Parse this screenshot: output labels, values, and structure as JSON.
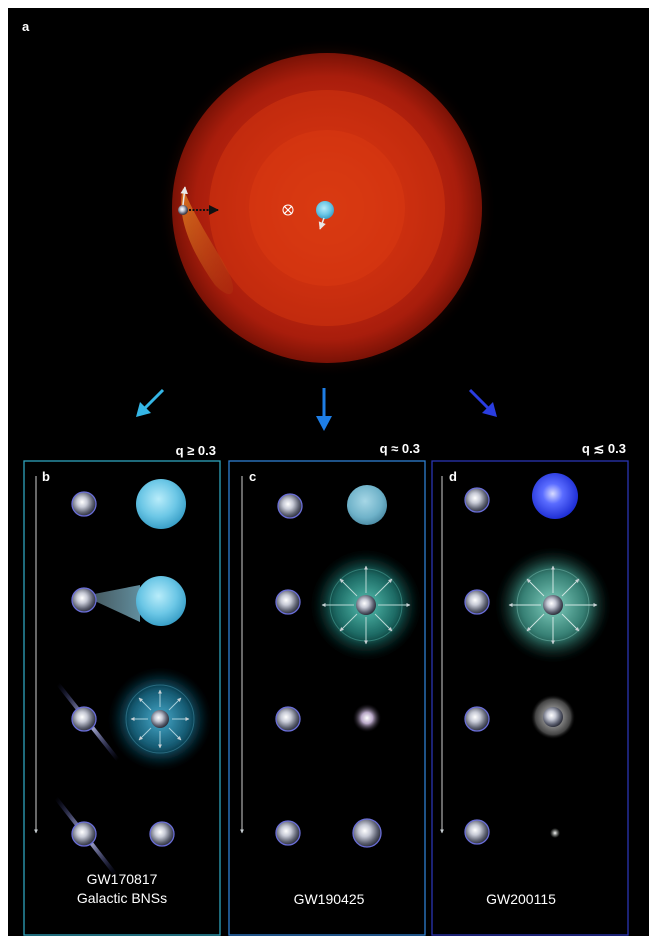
{
  "figure": {
    "panel_a": {
      "label": "a"
    },
    "panels": [
      {
        "label": "b",
        "q_label": "q ≥ 0.3",
        "caption_lines": [
          "GW170817",
          "Galactic BNSs"
        ],
        "border_color": "#2fa3bd",
        "arrow_color": "#35b6e6"
      },
      {
        "label": "c",
        "q_label": "q ≈ 0.3",
        "caption_lines": [
          "GW190425"
        ],
        "border_color": "#2e7fd0",
        "arrow_color": "#1e7ee6"
      },
      {
        "label": "d",
        "q_label": "q ≲ 0.3",
        "caption_lines": [
          "GW200115"
        ],
        "border_color": "#2a34b3",
        "arrow_color": "#2a3de0"
      }
    ],
    "colors": {
      "background": "#000000",
      "giant_envelope": "#c92a12",
      "companion_star": "#6cc7e6",
      "neutron_star": "#9aa3c8",
      "ejecta": "#3aa7bf"
    }
  }
}
